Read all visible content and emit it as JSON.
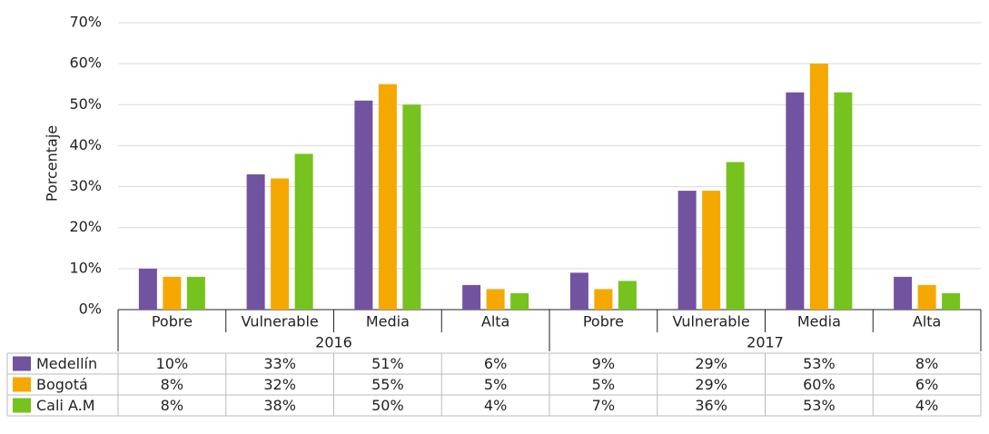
{
  "chart_data": {
    "type": "bar",
    "y_label": "Porcentaje",
    "groups": [
      "2016",
      "2017"
    ],
    "categories": [
      "Pobre",
      "Vulnerable",
      "Media",
      "Alta",
      "Pobre",
      "Vulnerable",
      "Media",
      "Alta"
    ],
    "series": [
      {
        "name": "Medellín",
        "color": "#7153a0",
        "values": [
          10,
          33,
          51,
          6,
          9,
          29,
          53,
          8
        ],
        "value_labels": [
          "10%",
          "33%",
          "51%",
          "6%",
          "9%",
          "29%",
          "53%",
          "8%"
        ]
      },
      {
        "name": "Bogotá",
        "color": "#f5a800",
        "values": [
          8,
          32,
          55,
          5,
          5,
          29,
          60,
          6
        ],
        "value_labels": [
          "8%",
          "32%",
          "55%",
          "5%",
          "5%",
          "29%",
          "60%",
          "6%"
        ]
      },
      {
        "name": "Cali A.M",
        "color": "#76c21e",
        "values": [
          8,
          38,
          50,
          4,
          7,
          36,
          53,
          4
        ],
        "value_labels": [
          "8%",
          "38%",
          "50%",
          "4%",
          "7%",
          "36%",
          "53%",
          "4%"
        ]
      }
    ],
    "ylim": [
      0,
      70
    ],
    "yticks": [
      {
        "value": 0,
        "label": "0%"
      },
      {
        "value": 10,
        "label": "10%"
      },
      {
        "value": 20,
        "label": "20%"
      },
      {
        "value": 30,
        "label": "30%"
      },
      {
        "value": 40,
        "label": "40%"
      },
      {
        "value": 50,
        "label": "50%"
      },
      {
        "value": 60,
        "label": "60%"
      },
      {
        "value": 70,
        "label": "70%"
      }
    ],
    "grid": true
  }
}
